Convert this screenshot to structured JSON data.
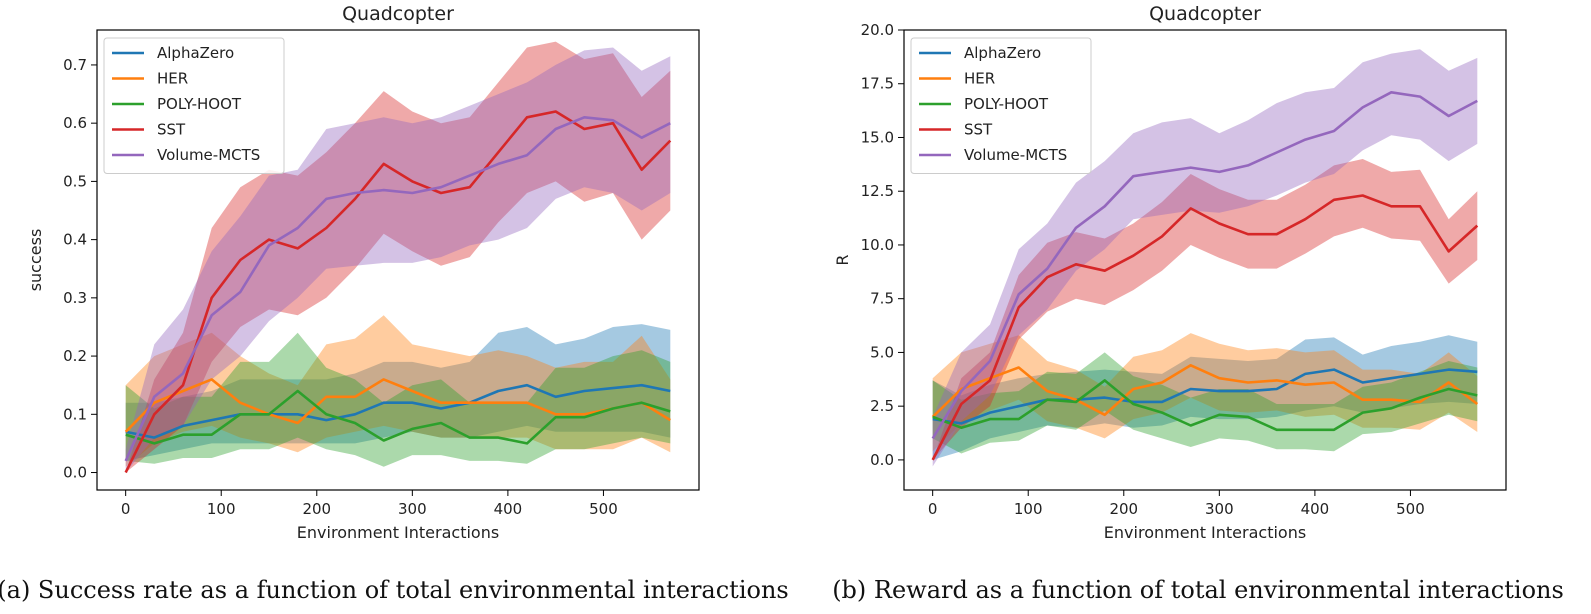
{
  "colors": {
    "AlphaZero": "#1f77b4",
    "HER": "#ff7f0e",
    "POLY-HOOT": "#2ca02c",
    "SST": "#d62728",
    "Volume-MCTS": "#9467bd"
  },
  "chart_data": [
    {
      "type": "line",
      "title": "Quadcopter",
      "xlabel": "Environment Interactions",
      "ylabel": "success",
      "caption": "(a) Success rate as a function of total environmental interactions",
      "xlim": [
        -30,
        600
      ],
      "ylim": [
        -0.03,
        0.76
      ],
      "xticks": [
        0,
        100,
        200,
        300,
        400,
        500
      ],
      "xtick_labels": [
        "0",
        "100",
        "200",
        "300",
        "400",
        "500"
      ],
      "yticks": [
        0.0,
        0.1,
        0.2,
        0.3,
        0.4,
        0.5,
        0.6,
        0.7
      ],
      "ytick_labels": [
        "0.0",
        "0.1",
        "0.2",
        "0.3",
        "0.4",
        "0.5",
        "0.6",
        "0.7"
      ],
      "legend_position": "top-left",
      "x": [
        0,
        30,
        60,
        90,
        120,
        150,
        180,
        210,
        240,
        270,
        300,
        330,
        360,
        390,
        420,
        450,
        480,
        510,
        540,
        570
      ],
      "series": [
        {
          "name": "AlphaZero",
          "values": [
            0.07,
            0.06,
            0.08,
            0.09,
            0.1,
            0.1,
            0.1,
            0.09,
            0.1,
            0.12,
            0.12,
            0.11,
            0.12,
            0.14,
            0.15,
            0.13,
            0.14,
            0.145,
            0.15,
            0.14
          ],
          "lower": [
            0.02,
            0.03,
            0.04,
            0.05,
            0.05,
            0.05,
            0.05,
            0.05,
            0.05,
            0.06,
            0.07,
            0.06,
            0.06,
            0.07,
            0.08,
            0.07,
            0.07,
            0.07,
            0.07,
            0.06
          ],
          "upper": [
            0.12,
            0.12,
            0.13,
            0.14,
            0.16,
            0.16,
            0.16,
            0.16,
            0.17,
            0.19,
            0.19,
            0.18,
            0.19,
            0.24,
            0.25,
            0.22,
            0.23,
            0.25,
            0.255,
            0.245
          ]
        },
        {
          "name": "HER",
          "values": [
            0.07,
            0.12,
            0.14,
            0.16,
            0.12,
            0.1,
            0.085,
            0.13,
            0.13,
            0.16,
            0.14,
            0.12,
            0.12,
            0.12,
            0.12,
            0.1,
            0.1,
            0.11,
            0.12,
            0.09
          ],
          "lower": [
            0.01,
            0.05,
            0.07,
            0.08,
            0.06,
            0.05,
            0.035,
            0.06,
            0.07,
            0.08,
            0.07,
            0.06,
            0.06,
            0.06,
            0.06,
            0.04,
            0.04,
            0.04,
            0.06,
            0.035
          ],
          "upper": [
            0.15,
            0.2,
            0.22,
            0.24,
            0.2,
            0.17,
            0.15,
            0.22,
            0.23,
            0.27,
            0.22,
            0.21,
            0.2,
            0.21,
            0.2,
            0.18,
            0.19,
            0.19,
            0.235,
            0.16
          ]
        },
        {
          "name": "POLY-HOOT",
          "values": [
            0.065,
            0.05,
            0.065,
            0.065,
            0.1,
            0.1,
            0.14,
            0.1,
            0.085,
            0.055,
            0.075,
            0.085,
            0.06,
            0.06,
            0.05,
            0.095,
            0.095,
            0.11,
            0.12,
            0.105
          ],
          "lower": [
            0.02,
            0.015,
            0.025,
            0.025,
            0.04,
            0.04,
            0.06,
            0.04,
            0.03,
            0.01,
            0.03,
            0.03,
            0.02,
            0.02,
            0.015,
            0.04,
            0.04,
            0.05,
            0.06,
            0.05
          ],
          "upper": [
            0.15,
            0.11,
            0.13,
            0.13,
            0.19,
            0.19,
            0.24,
            0.18,
            0.16,
            0.12,
            0.15,
            0.16,
            0.12,
            0.12,
            0.12,
            0.18,
            0.18,
            0.2,
            0.21,
            0.19
          ]
        },
        {
          "name": "SST",
          "values": [
            0.0,
            0.1,
            0.15,
            0.3,
            0.365,
            0.4,
            0.385,
            0.42,
            0.47,
            0.53,
            0.5,
            0.48,
            0.49,
            0.55,
            0.61,
            0.62,
            0.59,
            0.6,
            0.52,
            0.57
          ],
          "lower": [
            0.0,
            0.04,
            0.08,
            0.19,
            0.25,
            0.28,
            0.27,
            0.3,
            0.35,
            0.41,
            0.38,
            0.355,
            0.37,
            0.43,
            0.48,
            0.5,
            0.465,
            0.48,
            0.4,
            0.45
          ],
          "upper": [
            0.0,
            0.16,
            0.24,
            0.42,
            0.49,
            0.52,
            0.51,
            0.55,
            0.6,
            0.655,
            0.62,
            0.6,
            0.61,
            0.67,
            0.73,
            0.74,
            0.71,
            0.72,
            0.645,
            0.69
          ]
        },
        {
          "name": "Volume-MCTS",
          "values": [
            0.02,
            0.13,
            0.17,
            0.27,
            0.31,
            0.39,
            0.42,
            0.47,
            0.48,
            0.485,
            0.48,
            0.49,
            0.51,
            0.53,
            0.545,
            0.59,
            0.61,
            0.605,
            0.575,
            0.6
          ],
          "lower": [
            0.0,
            0.06,
            0.08,
            0.16,
            0.2,
            0.26,
            0.3,
            0.35,
            0.355,
            0.36,
            0.36,
            0.37,
            0.39,
            0.4,
            0.42,
            0.47,
            0.49,
            0.48,
            0.45,
            0.48
          ],
          "upper": [
            0.04,
            0.22,
            0.28,
            0.38,
            0.44,
            0.51,
            0.52,
            0.59,
            0.6,
            0.61,
            0.6,
            0.61,
            0.63,
            0.65,
            0.67,
            0.7,
            0.725,
            0.73,
            0.69,
            0.715
          ]
        }
      ]
    },
    {
      "type": "line",
      "title": "Quadcopter",
      "xlabel": "Environment Interactions",
      "ylabel": "R",
      "caption": "(b) Reward as a function of total environmental interactions",
      "xlim": [
        -30,
        600
      ],
      "ylim": [
        -1.4,
        20.0
      ],
      "xticks": [
        0,
        100,
        200,
        300,
        400,
        500
      ],
      "xtick_labels": [
        "0",
        "100",
        "200",
        "300",
        "400",
        "500"
      ],
      "yticks": [
        0.0,
        2.5,
        5.0,
        7.5,
        10.0,
        12.5,
        15.0,
        17.5,
        20.0
      ],
      "ytick_labels": [
        "0.0",
        "2.5",
        "5.0",
        "7.5",
        "10.0",
        "12.5",
        "15.0",
        "17.5",
        "20.0"
      ],
      "legend_position": "top-left",
      "x": [
        0,
        30,
        60,
        90,
        120,
        150,
        180,
        210,
        240,
        270,
        300,
        330,
        360,
        390,
        420,
        450,
        480,
        510,
        540,
        570
      ],
      "series": [
        {
          "name": "AlphaZero",
          "values": [
            1.9,
            1.7,
            2.2,
            2.5,
            2.8,
            2.8,
            2.9,
            2.7,
            2.7,
            3.3,
            3.2,
            3.2,
            3.3,
            4.0,
            4.2,
            3.6,
            3.8,
            4.0,
            4.2,
            4.1
          ],
          "lower": [
            0.0,
            0.4,
            1.0,
            1.3,
            1.6,
            1.5,
            1.7,
            1.5,
            1.6,
            2.0,
            1.9,
            1.9,
            2.0,
            2.3,
            2.5,
            2.2,
            2.4,
            2.6,
            2.7,
            2.6
          ],
          "upper": [
            3.7,
            3.0,
            3.5,
            3.8,
            4.0,
            4.1,
            4.2,
            4.1,
            4.0,
            4.8,
            4.7,
            4.6,
            4.7,
            5.6,
            5.7,
            4.9,
            5.3,
            5.5,
            5.8,
            5.5
          ]
        },
        {
          "name": "HER",
          "values": [
            2.0,
            3.3,
            3.8,
            4.3,
            3.2,
            2.8,
            2.1,
            3.3,
            3.6,
            4.4,
            3.8,
            3.6,
            3.7,
            3.5,
            3.6,
            2.8,
            2.8,
            2.7,
            3.6,
            2.6
          ],
          "lower": [
            0.4,
            1.7,
            2.3,
            2.8,
            1.8,
            1.5,
            1.0,
            1.9,
            2.2,
            2.9,
            2.3,
            2.2,
            2.3,
            2.0,
            2.1,
            1.5,
            1.5,
            1.4,
            2.2,
            1.3
          ],
          "upper": [
            3.8,
            5.0,
            5.4,
            5.8,
            4.6,
            4.2,
            3.4,
            4.8,
            5.1,
            5.9,
            5.4,
            5.1,
            5.2,
            5.0,
            5.1,
            4.2,
            4.2,
            4.0,
            5.0,
            3.9
          ]
        },
        {
          "name": "POLY-HOOT",
          "values": [
            2.0,
            1.5,
            1.9,
            1.9,
            2.8,
            2.7,
            3.7,
            2.6,
            2.2,
            1.6,
            2.1,
            2.0,
            1.4,
            1.4,
            1.4,
            2.2,
            2.4,
            2.9,
            3.3,
            3.0
          ],
          "lower": [
            1.0,
            0.3,
            0.8,
            0.9,
            1.6,
            1.4,
            2.3,
            1.4,
            1.0,
            0.6,
            1.0,
            0.9,
            0.5,
            0.5,
            0.4,
            1.2,
            1.3,
            1.7,
            2.1,
            1.8
          ],
          "upper": [
            3.7,
            2.8,
            3.1,
            3.2,
            4.1,
            4.0,
            5.0,
            3.9,
            3.5,
            2.9,
            3.3,
            3.3,
            2.6,
            2.6,
            2.6,
            3.4,
            3.6,
            4.1,
            4.6,
            4.3
          ]
        },
        {
          "name": "SST",
          "values": [
            0.0,
            2.6,
            3.7,
            7.1,
            8.5,
            9.1,
            8.8,
            9.5,
            10.4,
            11.7,
            11.0,
            10.5,
            10.5,
            11.2,
            12.1,
            12.3,
            11.8,
            11.8,
            9.7,
            10.9
          ],
          "lower": [
            0.0,
            1.5,
            2.5,
            5.6,
            6.9,
            7.5,
            7.2,
            7.9,
            8.8,
            10.0,
            9.4,
            8.9,
            8.9,
            9.6,
            10.4,
            10.8,
            10.3,
            10.2,
            8.2,
            9.3
          ],
          "upper": [
            0.0,
            3.8,
            5.0,
            8.6,
            10.1,
            10.6,
            10.3,
            11.0,
            12.0,
            13.3,
            12.6,
            12.1,
            12.1,
            12.8,
            13.7,
            14.0,
            13.4,
            13.5,
            11.2,
            12.5
          ]
        },
        {
          "name": "Volume-MCTS",
          "values": [
            1.0,
            3.2,
            4.6,
            7.7,
            8.9,
            10.8,
            11.8,
            13.2,
            13.4,
            13.6,
            13.4,
            13.7,
            14.3,
            14.9,
            15.3,
            16.4,
            17.1,
            16.9,
            16.0,
            16.7
          ],
          "lower": [
            -0.3,
            1.8,
            3.0,
            5.8,
            7.0,
            8.8,
            9.8,
            11.2,
            11.4,
            11.6,
            11.5,
            11.8,
            12.3,
            12.9,
            13.3,
            14.4,
            15.1,
            14.9,
            13.9,
            14.7
          ],
          "upper": [
            2.0,
            5.0,
            6.3,
            9.8,
            11.0,
            12.9,
            13.9,
            15.2,
            15.7,
            15.9,
            15.2,
            15.8,
            16.6,
            17.1,
            17.3,
            18.5,
            18.9,
            19.1,
            18.1,
            18.7
          ]
        }
      ]
    }
  ]
}
